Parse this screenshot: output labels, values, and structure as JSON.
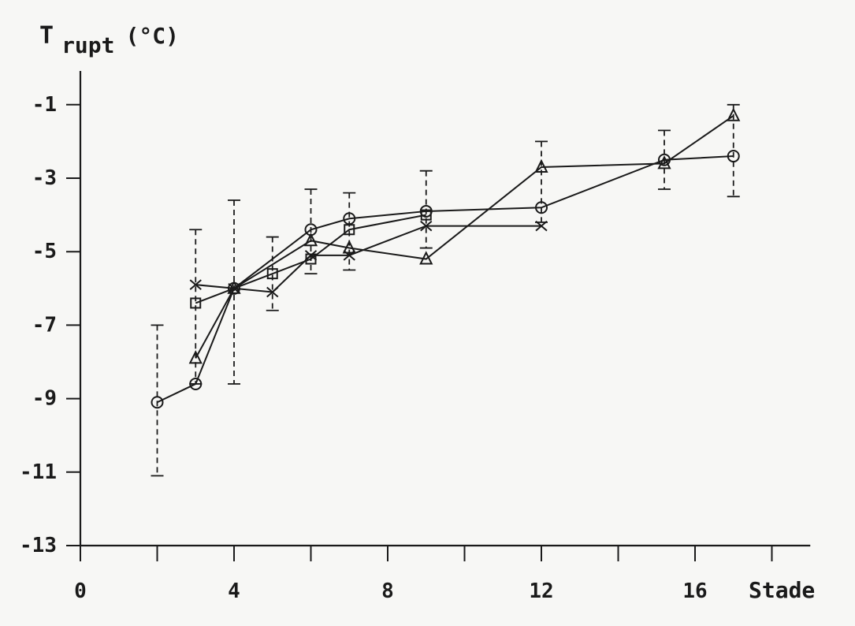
{
  "chart_data": {
    "type": "line",
    "title": "",
    "ylabel_main": "T",
    "ylabel_sub": "rupt",
    "ylabel_unit": "(°C)",
    "xlabel": "Stade",
    "xlim": [
      0,
      19
    ],
    "ylim": [
      -13,
      0.5
    ],
    "x_ticks": [
      0,
      4,
      8,
      12,
      16
    ],
    "x_minor_ticks": [
      2,
      6,
      10,
      14,
      18
    ],
    "y_ticks": [
      -1,
      -3,
      -5,
      -7,
      -9,
      -11,
      -13
    ],
    "grid": false,
    "series": [
      {
        "marker": "circle",
        "points": [
          [
            2,
            -9.1
          ],
          [
            3,
            -8.6
          ],
          [
            4,
            -6.0
          ],
          [
            6,
            -4.4
          ],
          [
            7,
            -4.1
          ],
          [
            9,
            -3.9
          ],
          [
            12,
            -3.8
          ],
          [
            15.2,
            -2.5
          ],
          [
            17,
            -2.4
          ]
        ]
      },
      {
        "marker": "triangle",
        "points": [
          [
            3,
            -7.9
          ],
          [
            4,
            -6.0
          ],
          [
            6,
            -4.7
          ],
          [
            7,
            -4.9
          ],
          [
            9,
            -5.2
          ],
          [
            12,
            -2.7
          ],
          [
            15.2,
            -2.6
          ],
          [
            17,
            -1.3
          ]
        ]
      },
      {
        "marker": "square",
        "points": [
          [
            3,
            -6.4
          ],
          [
            5,
            -5.6
          ],
          [
            6,
            -5.2
          ],
          [
            7,
            -4.4
          ],
          [
            9,
            -4.0
          ]
        ]
      },
      {
        "marker": "cross",
        "points": [
          [
            3,
            -5.9
          ],
          [
            4,
            -6.0
          ],
          [
            5,
            -6.1
          ],
          [
            6,
            -5.1
          ],
          [
            7,
            -5.1
          ],
          [
            9,
            -4.3
          ],
          [
            12,
            -4.3
          ]
        ]
      }
    ],
    "error_bars": [
      {
        "x": 2,
        "low": -11.1,
        "high": -7.0
      },
      {
        "x": 3,
        "low": -8.6,
        "high": -4.4
      },
      {
        "x": 4,
        "low": -8.6,
        "high": -3.6
      },
      {
        "x": 5,
        "low": -6.6,
        "high": -4.6
      },
      {
        "x": 6,
        "low": -5.6,
        "high": -3.3
      },
      {
        "x": 7,
        "low": -5.5,
        "high": -3.4
      },
      {
        "x": 9,
        "low": -4.9,
        "high": -2.8
      },
      {
        "x": 12,
        "low": -4.2,
        "high": -2.0
      },
      {
        "x": 15.2,
        "low": -3.3,
        "high": -1.7
      },
      {
        "x": 17,
        "low": -3.5,
        "high": -1.0
      }
    ]
  }
}
